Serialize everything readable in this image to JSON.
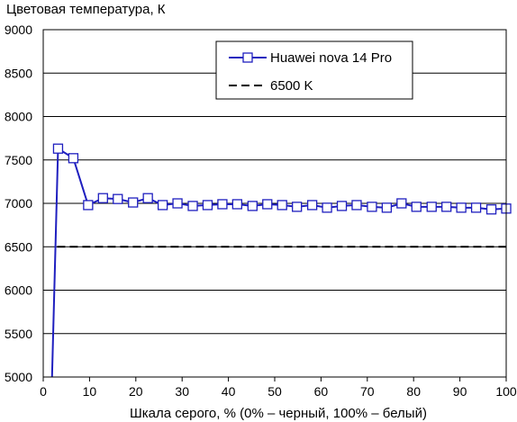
{
  "chart_data": {
    "type": "line",
    "ylabel": "Цветовая температура, К",
    "xlabel": "Шкала серого, % (0% – черный, 100% – белый)",
    "xlim": [
      0,
      100
    ],
    "ylim": [
      5000,
      9000
    ],
    "xticks": [
      0,
      10,
      20,
      30,
      40,
      50,
      60,
      70,
      80,
      90,
      100
    ],
    "yticks": [
      5000,
      5500,
      6000,
      6500,
      7000,
      7500,
      8000,
      8500,
      9000
    ],
    "grid": "horizontal",
    "legend_position": "top-right",
    "series": [
      {
        "name": "Huawei nova 14 Pro",
        "color": "#1f1fbf",
        "marker": "square",
        "style": "solid",
        "x": [
          1.9,
          3.2,
          6.5,
          9.7,
          12.9,
          16.1,
          19.4,
          22.6,
          25.8,
          29.0,
          32.3,
          35.5,
          38.7,
          41.9,
          45.2,
          48.4,
          51.6,
          54.8,
          58.1,
          61.3,
          64.5,
          67.7,
          71.0,
          74.2,
          77.4,
          80.6,
          83.9,
          87.1,
          90.3,
          93.5,
          96.8,
          100
        ],
        "y": [
          5000,
          7630,
          7520,
          6980,
          7060,
          7050,
          7010,
          7060,
          6980,
          7000,
          6970,
          6980,
          6990,
          6990,
          6970,
          6990,
          6980,
          6960,
          6980,
          6950,
          6970,
          6980,
          6960,
          6950,
          7000,
          6960,
          6960,
          6960,
          6950,
          6950,
          6930,
          6940
        ]
      },
      {
        "name": "6500 K",
        "color": "#000000",
        "style": "dashed",
        "x": [
          3,
          100
        ],
        "y": [
          6500,
          6500
        ]
      }
    ]
  }
}
